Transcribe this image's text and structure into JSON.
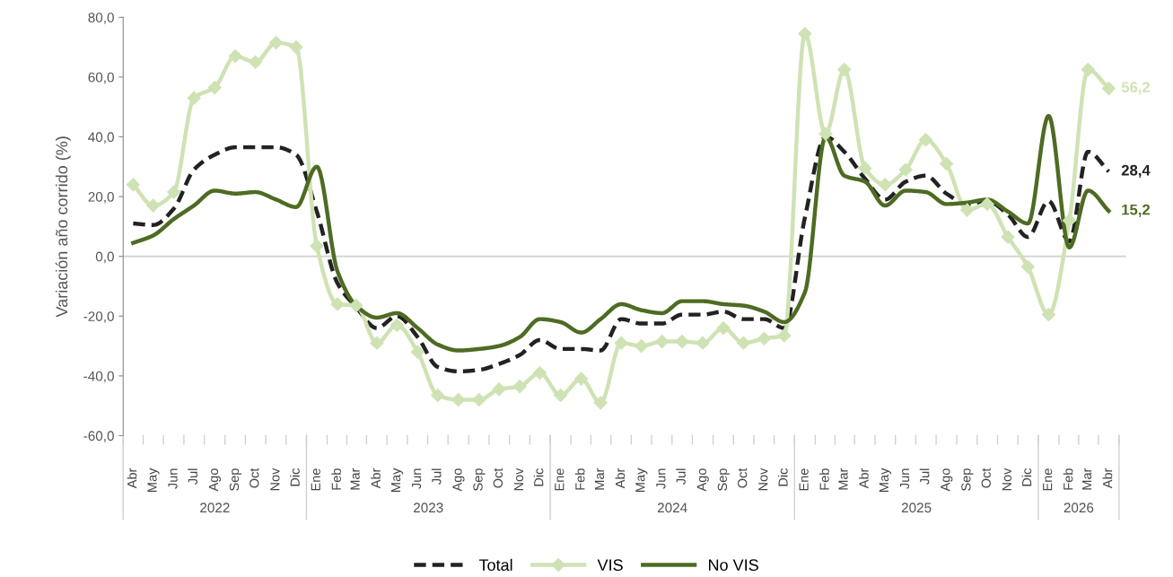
{
  "chart_data": {
    "type": "line",
    "ylabel": "Variación año corrido (%)",
    "x": [
      "2022-04",
      "2022-05",
      "2022-06",
      "2022-07",
      "2022-08",
      "2022-09",
      "2022-10",
      "2022-11",
      "2022-12",
      "2023-01",
      "2023-02",
      "2023-03",
      "2023-04",
      "2023-05",
      "2023-06",
      "2023-07",
      "2023-08",
      "2023-09",
      "2023-10",
      "2023-11",
      "2023-12",
      "2024-01",
      "2024-02",
      "2024-03",
      "2024-04",
      "2024-05",
      "2024-06",
      "2024-07",
      "2024-08",
      "2024-09",
      "2024-10",
      "2024-11",
      "2024-12",
      "2025-01",
      "2025-02",
      "2025-03",
      "2025-04",
      "2025-05",
      "2025-06",
      "2025-07",
      "2025-08",
      "2025-09",
      "2025-10",
      "2025-11",
      "2025-12",
      "2026-01",
      "2026-02",
      "2026-03",
      "2026-04"
    ],
    "xlim": [
      "2022-03-17",
      "2026-04-27"
    ],
    "xticks": [
      {
        "value": "2022-04",
        "label": "Abr"
      },
      {
        "value": "2022-05",
        "label": "May"
      },
      {
        "value": "2022-06",
        "label": "Jun"
      },
      {
        "value": "2022-07",
        "label": "Jul"
      },
      {
        "value": "2022-08",
        "label": "Ago"
      },
      {
        "value": "2022-09",
        "label": "Sep"
      },
      {
        "value": "2022-10",
        "label": "Oct"
      },
      {
        "value": "2022-11",
        "label": "Nov"
      },
      {
        "value": "2022-12",
        "label": "Dic"
      },
      {
        "value": "2023-01",
        "label": "Ene"
      },
      {
        "value": "2023-02",
        "label": "Feb"
      },
      {
        "value": "2023-03",
        "label": "Mar"
      },
      {
        "value": "2023-04",
        "label": "Abr"
      },
      {
        "value": "2023-05",
        "label": "May"
      },
      {
        "value": "2023-06",
        "label": "Jun"
      },
      {
        "value": "2023-07",
        "label": "Jul"
      },
      {
        "value": "2023-08",
        "label": "Ago"
      },
      {
        "value": "2023-09",
        "label": "Sep"
      },
      {
        "value": "2023-10",
        "label": "Oct"
      },
      {
        "value": "2023-11",
        "label": "Nov"
      },
      {
        "value": "2023-12",
        "label": "Dic"
      },
      {
        "value": "2024-01",
        "label": "Ene"
      },
      {
        "value": "2024-02",
        "label": "Feb"
      },
      {
        "value": "2024-03",
        "label": "Mar"
      },
      {
        "value": "2024-04",
        "label": "Abr"
      },
      {
        "value": "2024-05",
        "label": "May"
      },
      {
        "value": "2024-06",
        "label": "Jun"
      },
      {
        "value": "2024-07",
        "label": "Jul"
      },
      {
        "value": "2024-08",
        "label": "Ago"
      },
      {
        "value": "2024-09",
        "label": "Sep"
      },
      {
        "value": "2024-10",
        "label": "Oct"
      },
      {
        "value": "2024-11",
        "label": "Nov"
      },
      {
        "value": "2024-12",
        "label": "Dic"
      },
      {
        "value": "2025-01",
        "label": "Ene"
      },
      {
        "value": "2025-02",
        "label": "Feb"
      },
      {
        "value": "2025-03",
        "label": "Mar"
      },
      {
        "value": "2025-04",
        "label": "Abr"
      },
      {
        "value": "2025-05",
        "label": "May"
      },
      {
        "value": "2025-06",
        "label": "Jun"
      },
      {
        "value": "2025-07",
        "label": "Jul"
      },
      {
        "value": "2025-08",
        "label": "Ago"
      },
      {
        "value": "2025-09",
        "label": "Sep"
      },
      {
        "value": "2025-10",
        "label": "Oct"
      },
      {
        "value": "2025-11",
        "label": "Nov"
      },
      {
        "value": "2025-12",
        "label": "Dic"
      },
      {
        "value": "2026-01",
        "label": "Ene"
      },
      {
        "value": "2026-02",
        "label": "Feb"
      },
      {
        "value": "2026-03",
        "label": "Mar"
      },
      {
        "value": "2026-04",
        "label": "Abr"
      }
    ],
    "ylim": [
      -60,
      80
    ],
    "yticks": [
      {
        "value": -60,
        "label": "-60,0"
      },
      {
        "value": -40,
        "label": "-40,0"
      },
      {
        "value": -20,
        "label": "-20,0"
      },
      {
        "value": 0,
        "label": "0,0"
      },
      {
        "value": 20,
        "label": "20,0"
      },
      {
        "value": 40,
        "label": "40,0"
      },
      {
        "value": 60,
        "label": "60,0"
      },
      {
        "value": 80,
        "label": "80,0"
      }
    ],
    "annotations": [
      "2022",
      "2023",
      "2024",
      "2025",
      "2026"
    ],
    "grid": false,
    "ref_lines": [
      {
        "axis": "y",
        "value": 0,
        "color": "#d0d0d0"
      }
    ],
    "legend": "bottom",
    "series": [
      {
        "name": "Total",
        "color": "#222222",
        "line_style": "dashed",
        "marker": "none",
        "values": [
          11,
          10.5,
          16,
          29,
          34,
          36.5,
          36.5,
          36.5,
          34,
          15,
          -9,
          -17,
          -24,
          -20,
          -27,
          -37,
          -38.5,
          -38,
          -36,
          -33,
          -28,
          -31,
          -31,
          -31.5,
          -21,
          -22.5,
          -22.5,
          -19.5,
          -19.5,
          -18.5,
          -21,
          -21,
          -24,
          13,
          40,
          35,
          26,
          19,
          25,
          27,
          21,
          17.5,
          18.5,
          14,
          6.5,
          18.5,
          5,
          35,
          28.4
        ],
        "value_labels": [
          null,
          null,
          null,
          null,
          null,
          null,
          null,
          null,
          null,
          null,
          null,
          null,
          null,
          null,
          null,
          null,
          null,
          null,
          null,
          null,
          null,
          null,
          null,
          null,
          null,
          null,
          null,
          null,
          null,
          null,
          null,
          null,
          null,
          null,
          null,
          null,
          null,
          null,
          null,
          null,
          null,
          null,
          null,
          null,
          null,
          null,
          null,
          null,
          "28,4"
        ]
      },
      {
        "name": "VIS",
        "color": "#cfe2b4",
        "line_style": "solid",
        "marker": "diamond",
        "values": [
          24,
          17,
          21.5,
          53,
          56.5,
          67,
          65,
          71.5,
          70,
          3.5,
          -16,
          -16.5,
          -29,
          -23,
          -32,
          -46.5,
          -48,
          -48,
          -44.5,
          -43.5,
          -39,
          -46.5,
          -41,
          -49,
          -29,
          -30,
          -28.5,
          -28.5,
          -29,
          -24,
          -29,
          -27.5,
          -26.5,
          74.5,
          41,
          62.5,
          29.5,
          24,
          29,
          39,
          31,
          15.5,
          17.5,
          6.5,
          -3.5,
          -19.5,
          12,
          62.5,
          56.2
        ],
        "value_labels": [
          null,
          null,
          null,
          null,
          null,
          null,
          null,
          null,
          null,
          null,
          null,
          null,
          null,
          null,
          null,
          null,
          null,
          null,
          null,
          null,
          null,
          null,
          null,
          null,
          null,
          null,
          null,
          null,
          null,
          null,
          null,
          null,
          null,
          null,
          null,
          null,
          null,
          null,
          null,
          null,
          null,
          null,
          null,
          null,
          null,
          null,
          null,
          null,
          "56,2"
        ]
      },
      {
        "name": "No VIS",
        "color": "#4e6b23",
        "line_style": "solid",
        "marker": "none",
        "values": [
          4.5,
          7,
          12.5,
          17,
          22,
          21,
          21.5,
          19,
          16.5,
          30,
          -5,
          -16.5,
          -20.5,
          -19,
          -24,
          -29.5,
          -31.5,
          -31,
          -30,
          -27,
          -21,
          -22,
          -25.5,
          -21,
          -16,
          -18,
          -19,
          -15,
          -15,
          -16,
          -16.5,
          -18.5,
          -22,
          -12,
          40,
          27,
          25,
          17,
          22,
          21.5,
          17.5,
          18,
          19,
          15,
          11,
          47,
          3,
          22,
          15.2
        ],
        "value_labels": [
          null,
          null,
          null,
          null,
          null,
          null,
          null,
          null,
          null,
          null,
          null,
          null,
          null,
          null,
          null,
          null,
          null,
          null,
          null,
          null,
          null,
          null,
          null,
          null,
          null,
          null,
          null,
          null,
          null,
          null,
          null,
          null,
          null,
          null,
          null,
          null,
          null,
          null,
          null,
          null,
          null,
          null,
          null,
          null,
          null,
          null,
          null,
          null,
          "15,2"
        ]
      }
    ]
  }
}
